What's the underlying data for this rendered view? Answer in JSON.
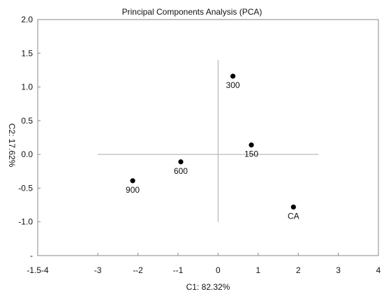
{
  "chart_data": {
    "type": "scatter",
    "title": "Principal Components Analysis (PCA)",
    "xlabel": "C1: 82.32%",
    "ylabel": "C2: 17.62%",
    "xlim": [
      -4.5,
      4
    ],
    "ylim": [
      -1.5,
      2.0
    ],
    "x_tick_values": [
      -4.5,
      -3,
      -2,
      -1,
      0,
      1,
      2,
      3,
      4
    ],
    "x_tick_labels": [
      "-1.5-4",
      "-3",
      "--2",
      "--1",
      "0",
      "1",
      "2",
      "3",
      "4"
    ],
    "y_tick_values": [
      2.0,
      1.5,
      1.0,
      0.5,
      0.0,
      -0.5,
      -1.0,
      -1.5
    ],
    "y_tick_labels": [
      "2.0",
      "1.5",
      "1.0",
      "0.5",
      "0.0",
      "-0.5",
      "-1.0",
      "-"
    ],
    "reference_lines": {
      "horizontal": {
        "y": 0.0,
        "x_from": -3.0,
        "x_to": 2.5
      },
      "vertical": {
        "x": 0.0,
        "y_from": -1.0,
        "y_to": 1.4
      }
    },
    "grid": false,
    "points": [
      {
        "label": "300",
        "x": 0.37,
        "y": 1.16
      },
      {
        "label": "150",
        "x": 0.83,
        "y": 0.14
      },
      {
        "label": "600",
        "x": -0.93,
        "y": -0.11
      },
      {
        "label": "900",
        "x": -2.13,
        "y": -0.39
      },
      {
        "label": "CA",
        "x": 1.88,
        "y": -0.78
      }
    ],
    "colors": {
      "points": "#000000",
      "reference_lines": "#aaaaaa",
      "frame": "#888888"
    }
  }
}
